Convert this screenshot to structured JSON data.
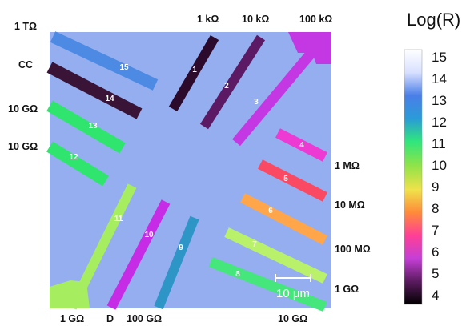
{
  "top_labels": [
    "1 kΩ",
    "10 kΩ",
    "100 kΩ"
  ],
  "left_labels": [
    "1 TΩ",
    "CC",
    "10 GΩ",
    "10 GΩ"
  ],
  "right_labels": [
    "1 MΩ",
    "10 MΩ",
    "100 MΩ",
    "1 GΩ"
  ],
  "bottom_labels": [
    "1 GΩ",
    "D",
    "100 GΩ",
    "10 GΩ"
  ],
  "scalebar": "10 μm",
  "colorbar": {
    "title": "Log(R)",
    "ticks": [
      "15",
      "14",
      "13",
      "12",
      "11",
      "10",
      "9",
      "8",
      "7",
      "6",
      "5",
      "4"
    ],
    "colormap": [
      "#000000",
      "#5a1b5e",
      "#c43fd6",
      "#ff3f96",
      "#ff8a3a",
      "#f0e24a",
      "#8be34a",
      "#2fe67d",
      "#2a9bd8",
      "#4a7fe8",
      "#d8e0ff",
      "#ffffff"
    ]
  },
  "background_color": "#94aef0",
  "electrodes": [
    {
      "num": "1",
      "log_r": 3.0,
      "color": "#2b0a2b"
    },
    {
      "num": "2",
      "log_r": 4.0,
      "color": "#5b1a63"
    },
    {
      "num": "3",
      "log_r": 5.0,
      "color": "#c438e3"
    },
    {
      "num": "4",
      "log_r": 6.0,
      "color": "#ec3ad2"
    },
    {
      "num": "5",
      "log_r": 7.0,
      "color": "#fa4a63"
    },
    {
      "num": "6",
      "log_r": 8.0,
      "color": "#ffa64b"
    },
    {
      "num": "7",
      "log_r": 9.0,
      "color": "#b9f16a"
    },
    {
      "num": "8",
      "log_r": 9.0,
      "color": "#45e67b"
    },
    {
      "num": "9",
      "log_r": 11.0,
      "color": "#2e95c7"
    },
    {
      "num": "10",
      "log_r": 6.0,
      "color": "#c62be6"
    },
    {
      "num": "11",
      "log_r": 9.0,
      "color": "#a6ee5f"
    },
    {
      "num": "12",
      "log_r": 10.0,
      "color": "#2fe56e"
    },
    {
      "num": "13",
      "log_r": 10.0,
      "color": "#2fe56e"
    },
    {
      "num": "14",
      "log_r": 0,
      "color": "#3a1436"
    },
    {
      "num": "15",
      "log_r": 12.0,
      "color": "#4d8ae3"
    }
  ]
}
